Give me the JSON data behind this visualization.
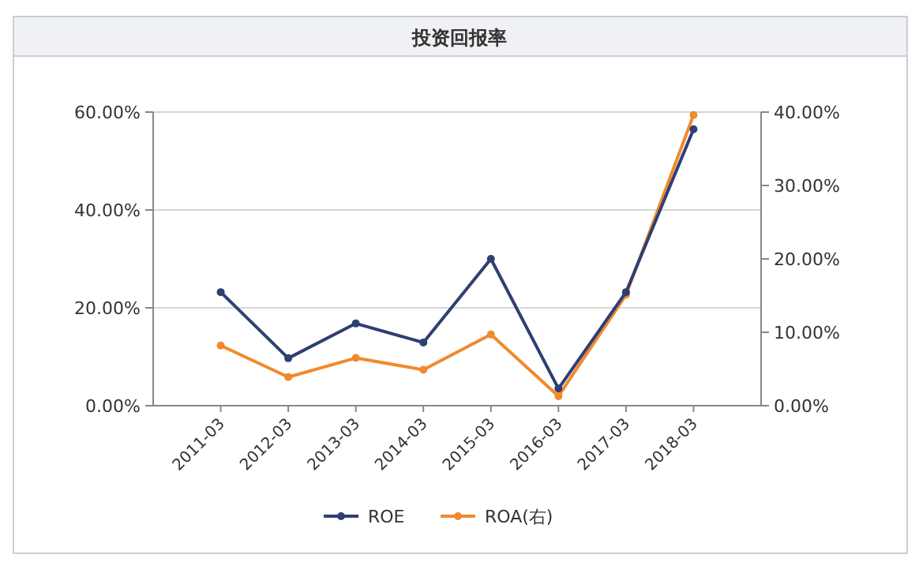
{
  "chart_data": {
    "type": "line",
    "title": "投资回报率",
    "categories": [
      "2011-03",
      "2012-03",
      "2013-03",
      "2014-03",
      "2015-03",
      "2016-03",
      "2017-03",
      "2018-03"
    ],
    "series": [
      {
        "name": "ROE",
        "color": "#2e3f73",
        "values": [
          23.2,
          9.7,
          16.8,
          12.9,
          30.0,
          3.5,
          23.2,
          56.5
        ]
      },
      {
        "name": "ROA(右)",
        "color": "#f08a2c",
        "axis": "y2",
        "values": [
          8.2,
          3.9,
          6.5,
          4.9,
          9.7,
          1.3,
          15.1,
          39.6
        ]
      }
    ],
    "ylim": [
      0,
      60
    ],
    "yticks": [
      {
        "value": 0,
        "label": "0.00%"
      },
      {
        "value": 20,
        "label": "20.00%"
      },
      {
        "value": 40,
        "label": "40.00%"
      },
      {
        "value": 60,
        "label": "60.00%"
      }
    ],
    "y2lim": [
      0,
      40
    ],
    "y2ticks": [
      {
        "value": 0,
        "label": "0.00%"
      },
      {
        "value": 10,
        "label": "10.00%"
      },
      {
        "value": 20,
        "label": "20.00%"
      },
      {
        "value": 30,
        "label": "30.00%"
      },
      {
        "value": 40,
        "label": "40.00%"
      }
    ],
    "grid": "y",
    "legend": "bottom",
    "marker": "circle",
    "line_style": "solid"
  }
}
